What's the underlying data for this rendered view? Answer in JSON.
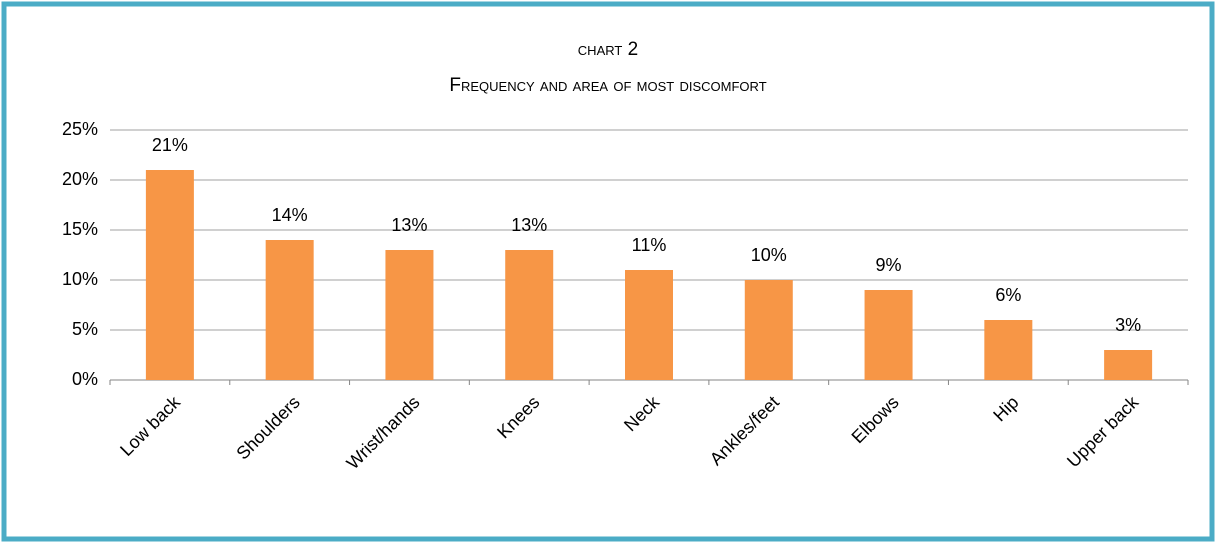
{
  "chart_data": {
    "type": "bar",
    "title": "chart 2",
    "subtitle": "Frequency  and area of most discomfort",
    "categories": [
      "Low back",
      "Shoulders",
      "Wrist/hands",
      "Knees",
      "Neck",
      "Ankles/feet",
      "Elbows",
      "Hip",
      "Upper back"
    ],
    "values": [
      21,
      14,
      13,
      13,
      11,
      10,
      9,
      6,
      3
    ],
    "value_labels": [
      "21%",
      "14%",
      "13%",
      "13%",
      "11%",
      "10%",
      "9%",
      "6%",
      "3%"
    ],
    "color": "#f79646",
    "ylim": [
      0,
      25
    ],
    "yticks": [
      {
        "value": 0,
        "label": "0%"
      },
      {
        "value": 5,
        "label": "5%"
      },
      {
        "value": 10,
        "label": "10%"
      },
      {
        "value": 15,
        "label": "15%"
      },
      {
        "value": 20,
        "label": "20%"
      },
      {
        "value": 25,
        "label": "25%"
      }
    ],
    "grid": true
  }
}
